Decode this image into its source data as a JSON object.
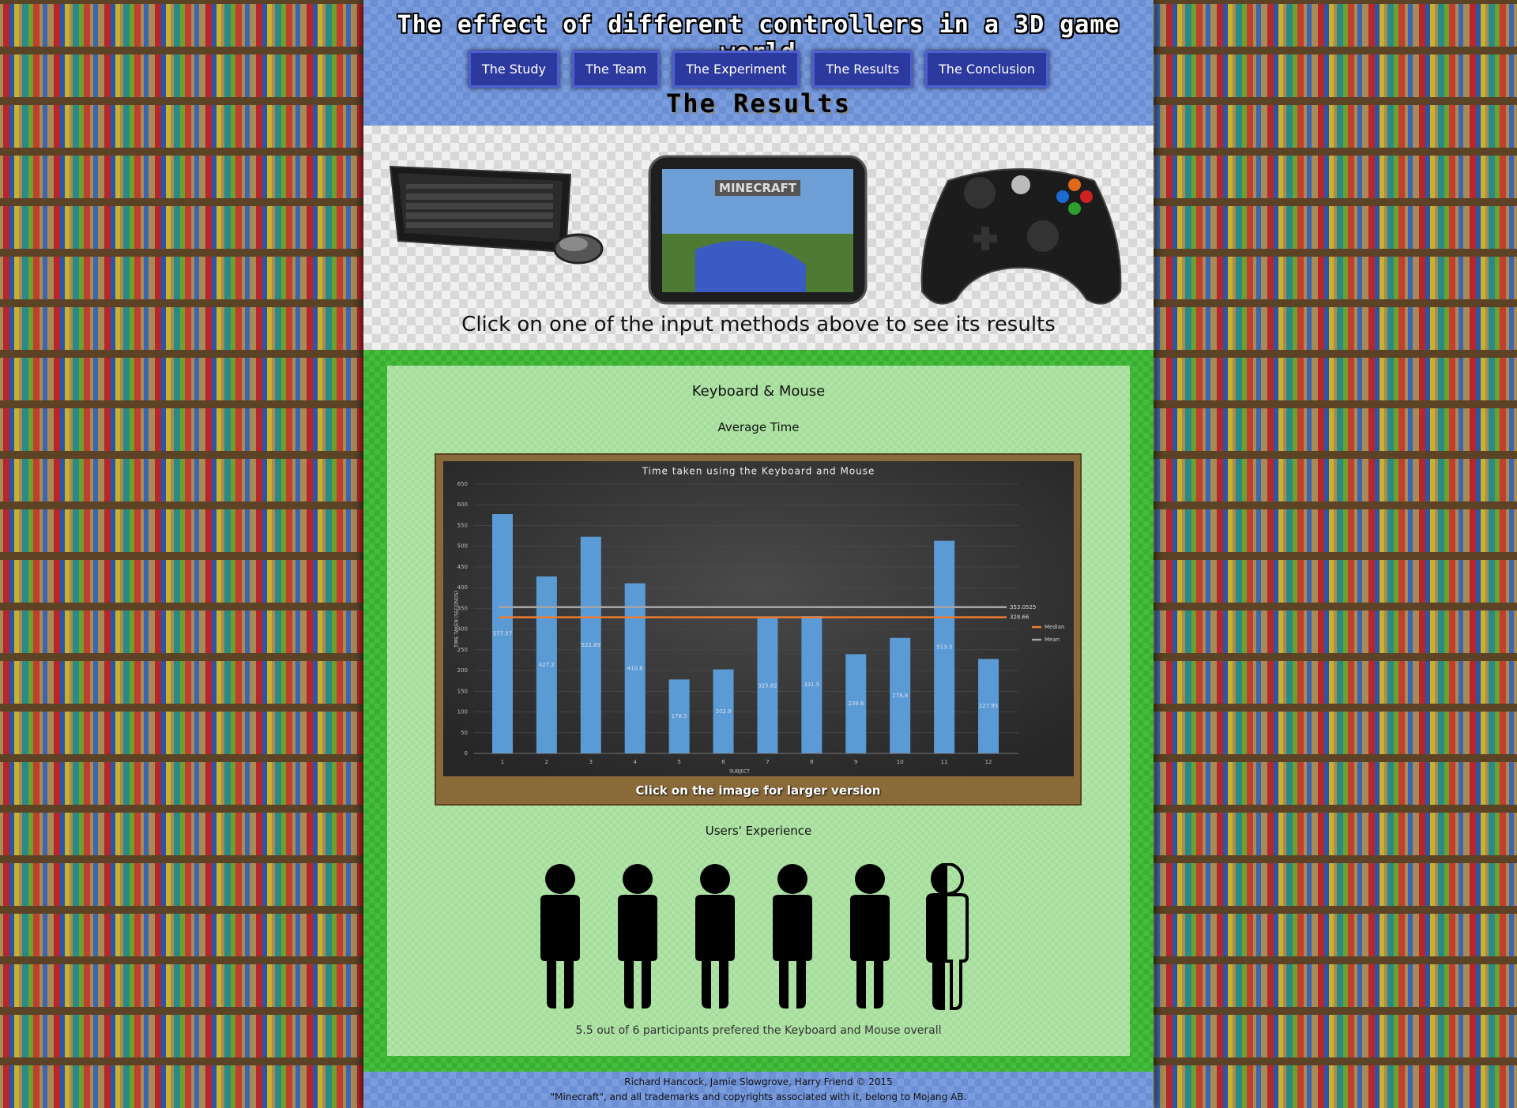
{
  "header": {
    "title": "The effect of different controllers in a 3D game world",
    "page_title": "The Results"
  },
  "nav": {
    "items": [
      "The Study",
      "The Team",
      "The Experiment",
      "The Results",
      "The Conclusion"
    ]
  },
  "hero": {
    "caption": "Click on one of the input methods above to see its results"
  },
  "results": {
    "heading": "Keyboard & Mouse",
    "subheading": "Average Time",
    "chart": {
      "type": "bar",
      "title": "Time taken using the Keyboard and Mouse",
      "y_label": "TIME TAKEN (SECONDS)",
      "x_label": "SUBJECT",
      "categories": [
        "1",
        "2",
        "3",
        "4",
        "5",
        "6",
        "7",
        "8",
        "9",
        "10",
        "11",
        "12"
      ],
      "values": [
        577.57,
        427.2,
        522.89,
        410.6,
        178.5,
        202.9,
        325.82,
        331.5,
        239.6,
        278.8,
        513.3,
        227.95
      ],
      "color": "#5b9bd5",
      "ylim": [
        0,
        650
      ],
      "yticks": [
        0,
        50,
        100,
        150,
        200,
        250,
        300,
        350,
        400,
        450,
        500,
        550,
        600,
        650
      ],
      "grid": true,
      "reference_lines": [
        {
          "name": "Median",
          "value": 328.66,
          "color": "#ed7d31"
        },
        {
          "name": "Mean",
          "value": 353.0525,
          "color": "#a5a5a5"
        }
      ]
    },
    "chart_caption": "Click on the image for larger version",
    "experience": {
      "heading": "Users' Experience",
      "summary": "5.5 out of 6 participants prefered the Keyboard and Mouse overall"
    }
  },
  "footer": {
    "credits": "Richard Hancock, Jamie Slowgrove, Harry Friend © 2015",
    "notice": "\"Minecraft\", and all trademarks and copyrights associated with it, belong to Mojang AB."
  }
}
